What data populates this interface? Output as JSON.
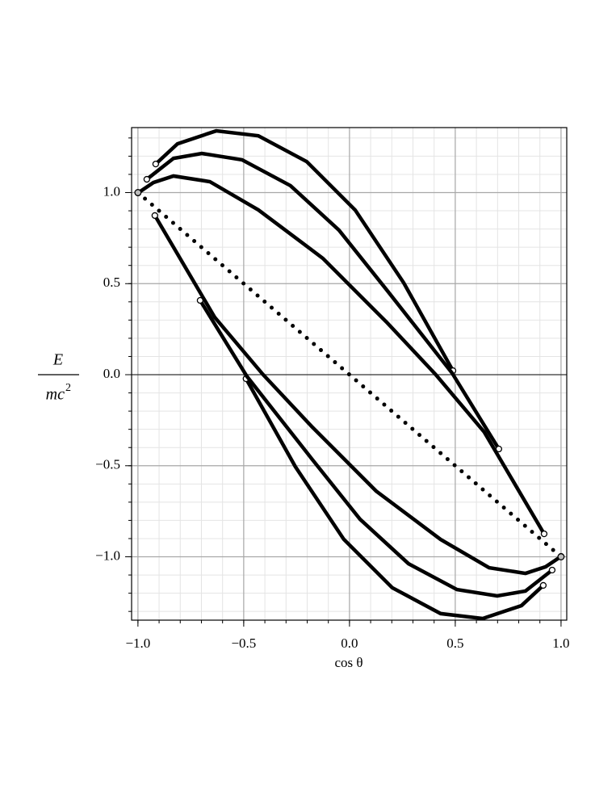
{
  "chart_data": {
    "type": "line",
    "xlabel": "cos θ",
    "ylabel_numerator": "E",
    "ylabel_denominator": "mc",
    "ylabel_exponent": "2",
    "xlim": [
      -1.03,
      1.027
    ],
    "ylim": [
      -1.348,
      1.357
    ],
    "xticks": [
      {
        "value": -1,
        "label": "−1.0"
      },
      {
        "value": -0.5,
        "label": "−0.5"
      },
      {
        "value": 0,
        "label": "0.0"
      },
      {
        "value": 0.5,
        "label": "0.5"
      },
      {
        "value": 1,
        "label": "1.0"
      }
    ],
    "yticks": [
      {
        "value": -1,
        "label": "−1.0"
      },
      {
        "value": -0.5,
        "label": "−0.5"
      },
      {
        "value": 0,
        "label": "0.0"
      },
      {
        "value": 0.5,
        "label": "0.5"
      },
      {
        "value": 1,
        "label": "1.0"
      }
    ],
    "grid": true,
    "minor_step": 0.1,
    "series": [
      {
        "color": "#000000",
        "style": "solid",
        "x": [
          -0.916,
          -0.813,
          -0.63,
          -0.431,
          -0.202,
          0.027,
          0.256,
          0.489
        ],
        "values": [
          1.157,
          1.268,
          1.339,
          1.312,
          1.17,
          0.904,
          0.505,
          0.022
        ]
      },
      {
        "color": "#000000",
        "style": "solid",
        "x": [
          -0.958,
          -0.832,
          -0.698,
          -0.508,
          -0.279,
          -0.05,
          0.179,
          0.485,
          0.706
        ],
        "values": [
          1.073,
          1.188,
          1.215,
          1.18,
          1.038,
          0.794,
          0.461,
          0.009,
          -0.408
        ]
      },
      {
        "color": "#000000",
        "style": "solid",
        "x": [
          -1.0,
          -0.927,
          -0.832,
          -0.66,
          -0.431,
          -0.126,
          0.179,
          0.408,
          0.637,
          0.92
        ],
        "values": [
          0.998,
          1.055,
          1.091,
          1.06,
          0.905,
          0.639,
          0.284,
          0.0,
          -0.315,
          -0.874
        ]
      },
      {
        "color": "#000000",
        "style": "solid",
        "x": [
          0.916,
          0.813,
          0.63,
          0.431,
          0.202,
          -0.027,
          -0.256,
          -0.489
        ],
        "values": [
          -1.157,
          -1.268,
          -1.339,
          -1.312,
          -1.17,
          -0.904,
          -0.505,
          -0.022
        ]
      },
      {
        "color": "#000000",
        "style": "solid",
        "x": [
          0.958,
          0.832,
          0.698,
          0.508,
          0.279,
          0.05,
          -0.179,
          -0.485,
          -0.706
        ],
        "values": [
          -1.073,
          -1.188,
          -1.215,
          -1.18,
          -1.038,
          -0.794,
          -0.461,
          -0.009,
          0.408
        ]
      },
      {
        "color": "#000000",
        "style": "solid",
        "x": [
          1.0,
          0.927,
          0.832,
          0.66,
          0.431,
          0.126,
          -0.179,
          -0.408,
          -0.637,
          -0.92
        ],
        "values": [
          -0.998,
          -1.055,
          -1.091,
          -1.06,
          -0.905,
          -0.639,
          -0.284,
          0.0,
          0.315,
          0.874
        ]
      },
      {
        "color": "#000000",
        "style": "dotted",
        "x": [
          -1.0,
          1.0
        ],
        "values": [
          1.0,
          -1.0
        ]
      }
    ]
  }
}
